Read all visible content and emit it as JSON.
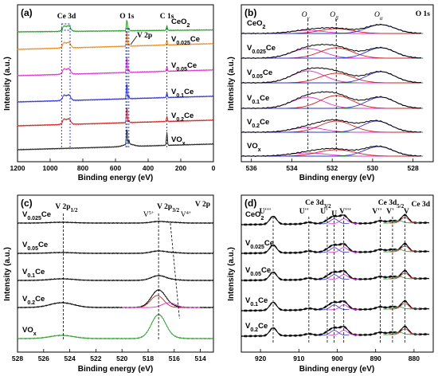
{
  "chart_data": [
    {
      "panel": "(a)",
      "type": "line",
      "xlabel": "Binding energy (eV)",
      "ylabel": "Intensity (a.u.)",
      "xlim": [
        1200,
        0
      ],
      "xticks": [
        "1200",
        "1000",
        "800",
        "600",
        "400",
        "200",
        "0"
      ],
      "peak_labels": [
        {
          "text": "Ce 3d",
          "x": 900
        },
        {
          "text": "O 1s",
          "x": 530
        },
        {
          "text": "C 1s",
          "x": 285
        },
        {
          "text": "V 2p",
          "x": 517
        }
      ],
      "series": [
        {
          "name": "CeO2",
          "color": "#2a9d2a"
        },
        {
          "name": "V0.025Ce",
          "color": "#f08a1c"
        },
        {
          "name": "V0.05Ce",
          "color": "#e030d0"
        },
        {
          "name": "V0.1Ce",
          "color": "#3030d0"
        },
        {
          "name": "V0.2Ce",
          "color": "#d02020"
        },
        {
          "name": "VOx",
          "color": "#222222"
        }
      ]
    },
    {
      "panel": "(b)",
      "type": "line",
      "xlabel": "Binding energy (eV)",
      "ylabel": "Intensity (a.u.)",
      "corner_label": "O 1s",
      "xlim": [
        536.5,
        527
      ],
      "xticks": [
        "536",
        "534",
        "532",
        "530",
        "528"
      ],
      "component_labels": [
        {
          "text": "Oγ",
          "x": 533.2
        },
        {
          "text": "Oβ",
          "x": 531.8
        },
        {
          "text": "Oα",
          "x": 529.6
        }
      ],
      "series": [
        {
          "name": "CeO2"
        },
        {
          "name": "V0.025Ce"
        },
        {
          "name": "V0.05Ce"
        },
        {
          "name": "V0.1Ce"
        },
        {
          "name": "V0.2Ce"
        },
        {
          "name": "VOx"
        }
      ]
    },
    {
      "panel": "(c)",
      "type": "line",
      "xlabel": "Binding energy (eV)",
      "ylabel": "Intensity (a.u.)",
      "corner_label": "V 2p",
      "xlim": [
        528,
        513
      ],
      "xticks": [
        "528",
        "526",
        "524",
        "522",
        "520",
        "518",
        "516",
        "514"
      ],
      "peak_labels": [
        {
          "text": "V 2p1/2",
          "x": 524.5
        },
        {
          "text": "V 2p3/2",
          "x": 517.2
        },
        {
          "text": "V5+",
          "x": 517.4
        },
        {
          "text": "V4+",
          "x": 516.0
        }
      ],
      "series": [
        {
          "name": "V0.025Ce"
        },
        {
          "name": "V0.05Ce"
        },
        {
          "name": "V0.1Ce"
        },
        {
          "name": "V0.2Ce"
        },
        {
          "name": "VOx"
        }
      ]
    },
    {
      "panel": "(d)",
      "type": "line",
      "xlabel": "Binding energy (eV)",
      "ylabel": "Intensity (a.u.)",
      "corner_label": "Ce 3d",
      "xlim": [
        925,
        875
      ],
      "xticks": [
        "920",
        "910",
        "900",
        "890",
        "880"
      ],
      "region_labels": [
        {
          "text": "Ce 3d3/2",
          "x": 905
        },
        {
          "text": "Ce 3d5/2",
          "x": 886
        }
      ],
      "peak_labels": [
        {
          "text": "U'''",
          "x": 916.7
        },
        {
          "text": "U''",
          "x": 907.4
        },
        {
          "text": "U'",
          "x": 902.6
        },
        {
          "text": "U",
          "x": 900.8
        },
        {
          "text": "V'''",
          "x": 898.3
        },
        {
          "text": "V''",
          "x": 888.8
        },
        {
          "text": "V'",
          "x": 885.6
        },
        {
          "text": "V",
          "x": 882.4
        }
      ],
      "series": [
        {
          "name": "CeO2"
        },
        {
          "name": "V0.025Ce"
        },
        {
          "name": "V0.05Ce"
        },
        {
          "name": "V0.1Ce"
        },
        {
          "name": "V0.2Ce"
        }
      ]
    }
  ]
}
